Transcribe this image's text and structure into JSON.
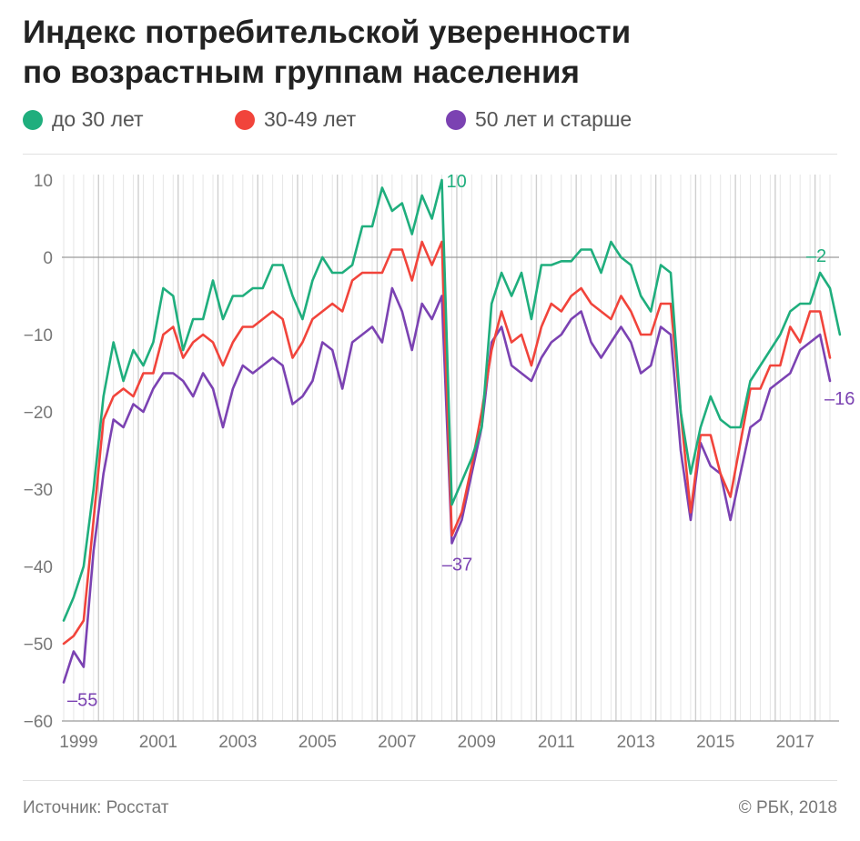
{
  "header": {
    "title_line1": "Индекс потребительской уверенности",
    "title_line2": "по возрастным группам населения"
  },
  "legend": [
    {
      "label": "до 30 лет",
      "color": "#1fae7d"
    },
    {
      "label": "30-49 лет",
      "color": "#f1443b"
    },
    {
      "label": "50 лет и старше",
      "color": "#7b42b2"
    }
  ],
  "footer": {
    "source": "Источник: Росстат",
    "copyright": "© РБК, 2018"
  },
  "chart_data": {
    "type": "line",
    "x_label_years": [
      "1999",
      "2001",
      "2003",
      "2005",
      "2007",
      "2009",
      "2011",
      "2013",
      "2015",
      "2017"
    ],
    "x_start": "1999-Q1",
    "x_end": "2018-Q2",
    "frequency": "quarterly",
    "ylim": [
      -60,
      10
    ],
    "yticks": [
      10,
      0,
      -10,
      -20,
      -30,
      -40,
      -50,
      -60
    ],
    "grid": "vertical per quarter, horizontal per 10",
    "series": [
      {
        "name": "до 30 лет",
        "color": "#1fae7d",
        "values": [
          -47,
          -44,
          -40,
          -30,
          -18,
          -11,
          -16,
          -12,
          -14,
          -11,
          -4,
          -5,
          -12,
          -8,
          -8,
          -3,
          -8,
          -5,
          -5,
          -4,
          -4,
          -1,
          -1,
          -5,
          -8,
          -3,
          0,
          -2,
          -2,
          -1,
          4,
          4,
          9,
          6,
          7,
          3,
          8,
          5,
          10,
          -32,
          -29,
          -26,
          -22,
          -6,
          -2,
          -5,
          -2,
          -8,
          -1,
          -1,
          -0.5,
          -0.5,
          1,
          1,
          -2,
          2,
          0,
          -1,
          -5,
          -7,
          -1,
          -2,
          -20,
          -28,
          -22,
          -18,
          -21,
          -22,
          -22,
          -16,
          -14,
          -12,
          -10,
          -7,
          -6,
          -6,
          -2,
          -4,
          -10
        ]
      },
      {
        "name": "30-49 лет",
        "color": "#f1443b",
        "values": [
          -50,
          -49,
          -47,
          -34,
          -21,
          -18,
          -17,
          -18,
          -15,
          -15,
          -10,
          -9,
          -13,
          -11,
          -10,
          -11,
          -14,
          -11,
          -9,
          -9,
          -8,
          -7,
          -8,
          -13,
          -11,
          -8,
          -7,
          -6,
          -7,
          -3,
          -2,
          -2,
          -2,
          1,
          1,
          -3,
          2,
          -1,
          2,
          -36,
          -33,
          -27,
          -20,
          -12,
          -7,
          -11,
          -10,
          -14,
          -9,
          -6,
          -7,
          -5,
          -4,
          -6,
          -7,
          -8,
          -5,
          -7,
          -10,
          -10,
          -6,
          -6,
          -20,
          -33,
          -23,
          -23,
          -28,
          -31,
          -24,
          -17,
          -17,
          -14,
          -14,
          -9,
          -11,
          -7,
          -7,
          -13
        ]
      },
      {
        "name": "50 лет и старше",
        "color": "#7b42b2",
        "values": [
          -55,
          -51,
          -53,
          -38,
          -28,
          -21,
          -22,
          -19,
          -20,
          -17,
          -15,
          -15,
          -16,
          -18,
          -15,
          -17,
          -22,
          -17,
          -14,
          -15,
          -14,
          -13,
          -14,
          -19,
          -18,
          -16,
          -11,
          -12,
          -17,
          -11,
          -10,
          -9,
          -11,
          -4,
          -7,
          -12,
          -6,
          -8,
          -5,
          -37,
          -34,
          -28,
          -22,
          -11,
          -9,
          -14,
          -15,
          -16,
          -13,
          -11,
          -10,
          -8,
          -7,
          -11,
          -13,
          -11,
          -9,
          -11,
          -15,
          -14,
          -9,
          -10,
          -25,
          -34,
          -24,
          -27,
          -28,
          -34,
          -28,
          -22,
          -21,
          -17,
          -16,
          -15,
          -12,
          -11,
          -10,
          -16
        ]
      }
    ],
    "annotations": [
      {
        "text": "10",
        "series": "до 30 лет",
        "index": 38,
        "color": "#1fae7d"
      },
      {
        "text": "–2",
        "series": "до 30 лет",
        "index": 76,
        "color": "#1fae7d"
      },
      {
        "text": "–37",
        "series": "50 лет и старше",
        "index": 39,
        "color": "#7b42b2"
      },
      {
        "text": "–55",
        "series": "50 лет и старше",
        "index": 0,
        "color": "#7b42b2"
      },
      {
        "text": "–16",
        "series": "50 лет и старше",
        "index": 77,
        "color": "#7b42b2"
      }
    ]
  }
}
